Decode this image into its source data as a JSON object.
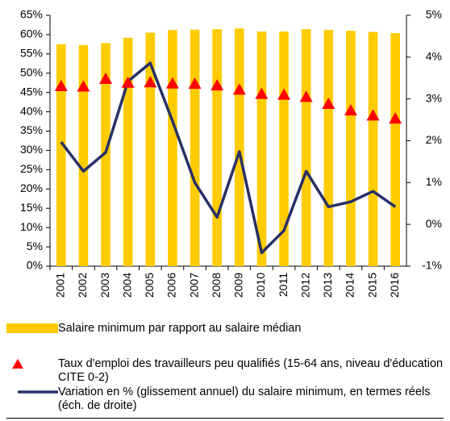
{
  "chart_data": {
    "type": "bar",
    "categories": [
      "2001",
      "2002",
      "2003",
      "2004",
      "2005",
      "2006",
      "2007",
      "2008",
      "2009",
      "2010",
      "2011",
      "2012",
      "2013",
      "2014",
      "2015",
      "2016"
    ],
    "series": [
      {
        "name": "Salaire minimum par rapport au salaire médian",
        "kind": "bar",
        "color": "#ffcc00",
        "values": [
          57.5,
          57.3,
          57.8,
          59.2,
          60.5,
          61.2,
          61.3,
          61.4,
          61.6,
          60.8,
          60.8,
          61.4,
          61.2,
          61.0,
          60.7,
          60.4
        ]
      },
      {
        "name": "Taux d'emploi des travailleurs peu qualifiés (15-64 ans, niveau d'éducation CITE 0-2)",
        "kind": "scatter",
        "color": "#ff0000",
        "values": [
          46.6,
          46.5,
          48.5,
          47.5,
          47.6,
          47.3,
          47.2,
          46.8,
          45.7,
          44.6,
          44.4,
          43.8,
          42.0,
          40.3,
          39.0,
          38.2
        ]
      },
      {
        "name": "Variation en % (glissement annuel) du salaire minimum, en termes réels (éch. de droite)",
        "kind": "line",
        "color": "#283068",
        "axis": "y2",
        "values": [
          1.97,
          1.27,
          1.72,
          3.42,
          3.86,
          2.47,
          1.0,
          0.17,
          1.74,
          -0.68,
          -0.15,
          1.27,
          0.42,
          0.54,
          0.79,
          0.42
        ]
      }
    ],
    "ylim": [
      0,
      65
    ],
    "yticks": [
      {
        "value": 0,
        "label": "0%"
      },
      {
        "value": 5,
        "label": "5%"
      },
      {
        "value": 10,
        "label": "10%"
      },
      {
        "value": 15,
        "label": "15%"
      },
      {
        "value": 20,
        "label": "20%"
      },
      {
        "value": 25,
        "label": "25%"
      },
      {
        "value": 30,
        "label": "30%"
      },
      {
        "value": 35,
        "label": "35%"
      },
      {
        "value": 40,
        "label": "40%"
      },
      {
        "value": 45,
        "label": "45%"
      },
      {
        "value": 50,
        "label": "50%"
      },
      {
        "value": 55,
        "label": "55%"
      },
      {
        "value": 60,
        "label": "60%"
      },
      {
        "value": 65,
        "label": "65%"
      }
    ],
    "y2lim": [
      -1,
      5
    ],
    "y2ticks": [
      {
        "value": -1,
        "label": "-1%"
      },
      {
        "value": 0,
        "label": "0%"
      },
      {
        "value": 1,
        "label": "1%"
      },
      {
        "value": 2,
        "label": "2%"
      },
      {
        "value": 3,
        "label": "3%"
      },
      {
        "value": 4,
        "label": "4%"
      },
      {
        "value": 5,
        "label": "5%"
      }
    ],
    "grid": false,
    "legend": "bottom"
  }
}
